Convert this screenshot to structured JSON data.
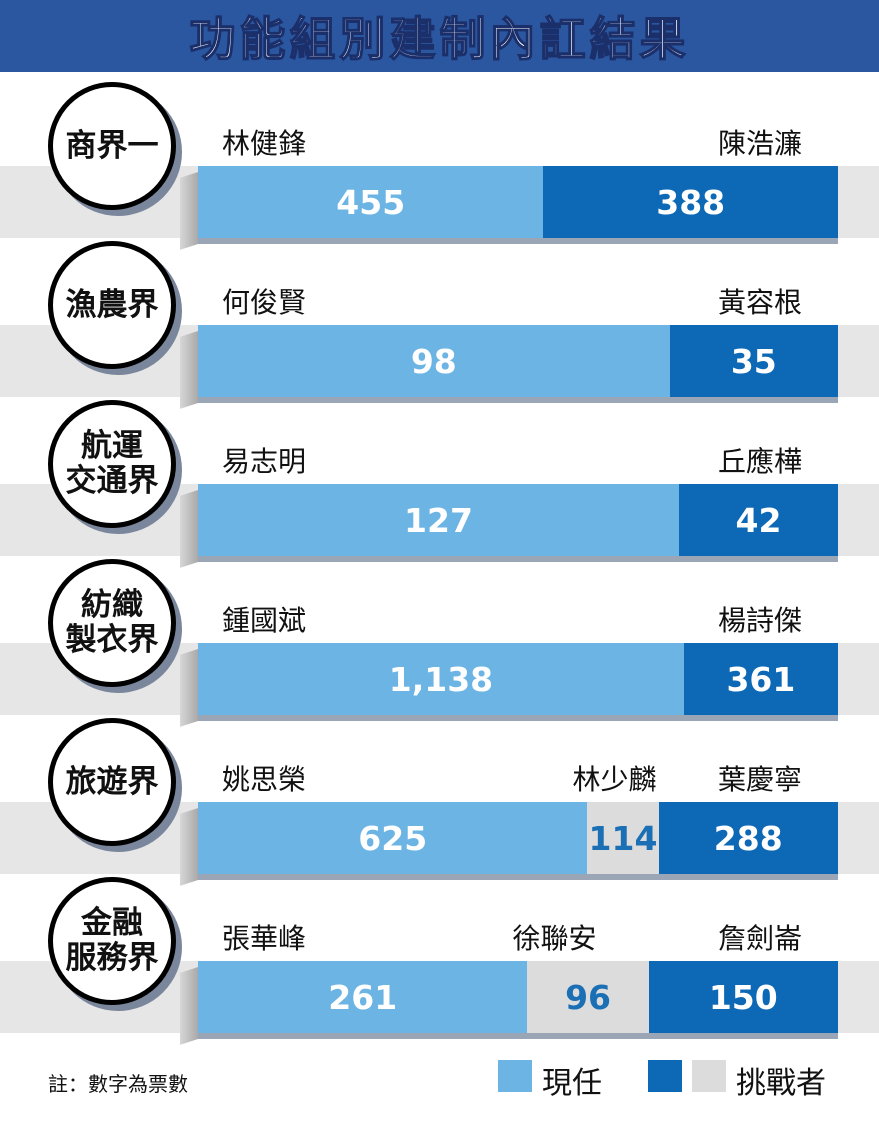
{
  "chart_data": {
    "type": "bar",
    "title": "功能組別建制內訌結果",
    "note": "註：數字為票數",
    "colors": {
      "incumbent": "#6cb4e4",
      "challenger": "#0d69b6",
      "other": "#dcdcdc"
    },
    "legend": {
      "incumbent": "現任",
      "challenger": "挑戰者"
    },
    "rows": [
      {
        "category_lines": [
          "商界一"
        ],
        "segments": [
          {
            "candidate": "林健鋒",
            "votes": 455,
            "votes_label": "455",
            "role": "incumbent"
          },
          {
            "candidate": "陳浩濂",
            "votes": 388,
            "votes_label": "388",
            "role": "challenger"
          }
        ]
      },
      {
        "category_lines": [
          "漁農界"
        ],
        "segments": [
          {
            "candidate": "何俊賢",
            "votes": 98,
            "votes_label": "98",
            "role": "incumbent"
          },
          {
            "candidate": "黃容根",
            "votes": 35,
            "votes_label": "35",
            "role": "challenger"
          }
        ]
      },
      {
        "category_lines": [
          "航運",
          "交通界"
        ],
        "segments": [
          {
            "candidate": "易志明",
            "votes": 127,
            "votes_label": "127",
            "role": "incumbent"
          },
          {
            "candidate": "丘應樺",
            "votes": 42,
            "votes_label": "42",
            "role": "challenger"
          }
        ]
      },
      {
        "category_lines": [
          "紡織",
          "製衣界"
        ],
        "segments": [
          {
            "candidate": "鍾國斌",
            "votes": 1138,
            "votes_label": "1,138",
            "role": "incumbent"
          },
          {
            "candidate": "楊詩傑",
            "votes": 361,
            "votes_label": "361",
            "role": "challenger"
          }
        ]
      },
      {
        "category_lines": [
          "旅遊界"
        ],
        "segments": [
          {
            "candidate": "姚思榮",
            "votes": 625,
            "votes_label": "625",
            "role": "incumbent"
          },
          {
            "candidate": "林少麟",
            "votes": 114,
            "votes_label": "114",
            "role": "other"
          },
          {
            "candidate": "葉慶寧",
            "votes": 288,
            "votes_label": "288",
            "role": "challenger"
          }
        ]
      },
      {
        "category_lines": [
          "金融",
          "服務界"
        ],
        "segments": [
          {
            "candidate": "張華峰",
            "votes": 261,
            "votes_label": "261",
            "role": "incumbent"
          },
          {
            "candidate": "徐聯安",
            "votes": 96,
            "votes_label": "96",
            "role": "other"
          },
          {
            "candidate": "詹劍崙",
            "votes": 150,
            "votes_label": "150",
            "role": "challenger"
          }
        ]
      }
    ]
  }
}
